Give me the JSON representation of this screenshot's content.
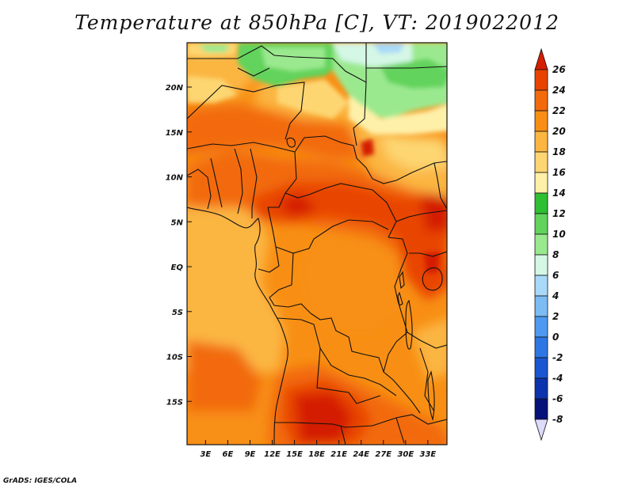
{
  "title": "Temperature at 850hPa [C], VT: 2019022012",
  "credit": "GrADS: IGES/COLA",
  "map": {
    "lat_labels": [
      {
        "lat": 20,
        "text": "20N"
      },
      {
        "lat": 15,
        "text": "15N"
      },
      {
        "lat": 10,
        "text": "10N"
      },
      {
        "lat": 5,
        "text": "5N"
      },
      {
        "lat": 0,
        "text": "EQ"
      },
      {
        "lat": -5,
        "text": "5S"
      },
      {
        "lat": -10,
        "text": "10S"
      },
      {
        "lat": -15,
        "text": "15S"
      }
    ],
    "lon_labels": [
      {
        "lon": 3,
        "text": "3E"
      },
      {
        "lon": 6,
        "text": "6E"
      },
      {
        "lon": 9,
        "text": "9E"
      },
      {
        "lon": 12,
        "text": "12E"
      },
      {
        "lon": 15,
        "text": "15E"
      },
      {
        "lon": 18,
        "text": "18E"
      },
      {
        "lon": 21,
        "text": "21E"
      },
      {
        "lon": 24,
        "text": "24E"
      },
      {
        "lon": 27,
        "text": "27E"
      },
      {
        "lon": 30,
        "text": "30E"
      },
      {
        "lon": 33,
        "text": "33E"
      }
    ]
  },
  "colorbar": {
    "levels": [
      {
        "label": "26",
        "color": "#d41e00"
      },
      {
        "label": "24",
        "color": "#e84400"
      },
      {
        "label": "22",
        "color": "#f26a0c"
      },
      {
        "label": "20",
        "color": "#f88f14"
      },
      {
        "label": "18",
        "color": "#fbb642"
      },
      {
        "label": "16",
        "color": "#fdd672"
      },
      {
        "label": "14",
        "color": "#fef0a8"
      },
      {
        "label": "12",
        "color": "#2fbf33"
      },
      {
        "label": "10",
        "color": "#62d35c"
      },
      {
        "label": "8",
        "color": "#9be98f"
      },
      {
        "label": "6",
        "color": "#d4f7e6"
      },
      {
        "label": "4",
        "color": "#a9d9f8"
      },
      {
        "label": "2",
        "color": "#7cbcf3"
      },
      {
        "label": "0",
        "color": "#4f9af0"
      },
      {
        "label": "-2",
        "color": "#2d77e4"
      },
      {
        "label": "-4",
        "color": "#1a56d0"
      },
      {
        "label": "-6",
        "color": "#0c33ad"
      },
      {
        "label": "-8",
        "color": "#05127a"
      }
    ],
    "under_color": "#dcdcfa"
  }
}
